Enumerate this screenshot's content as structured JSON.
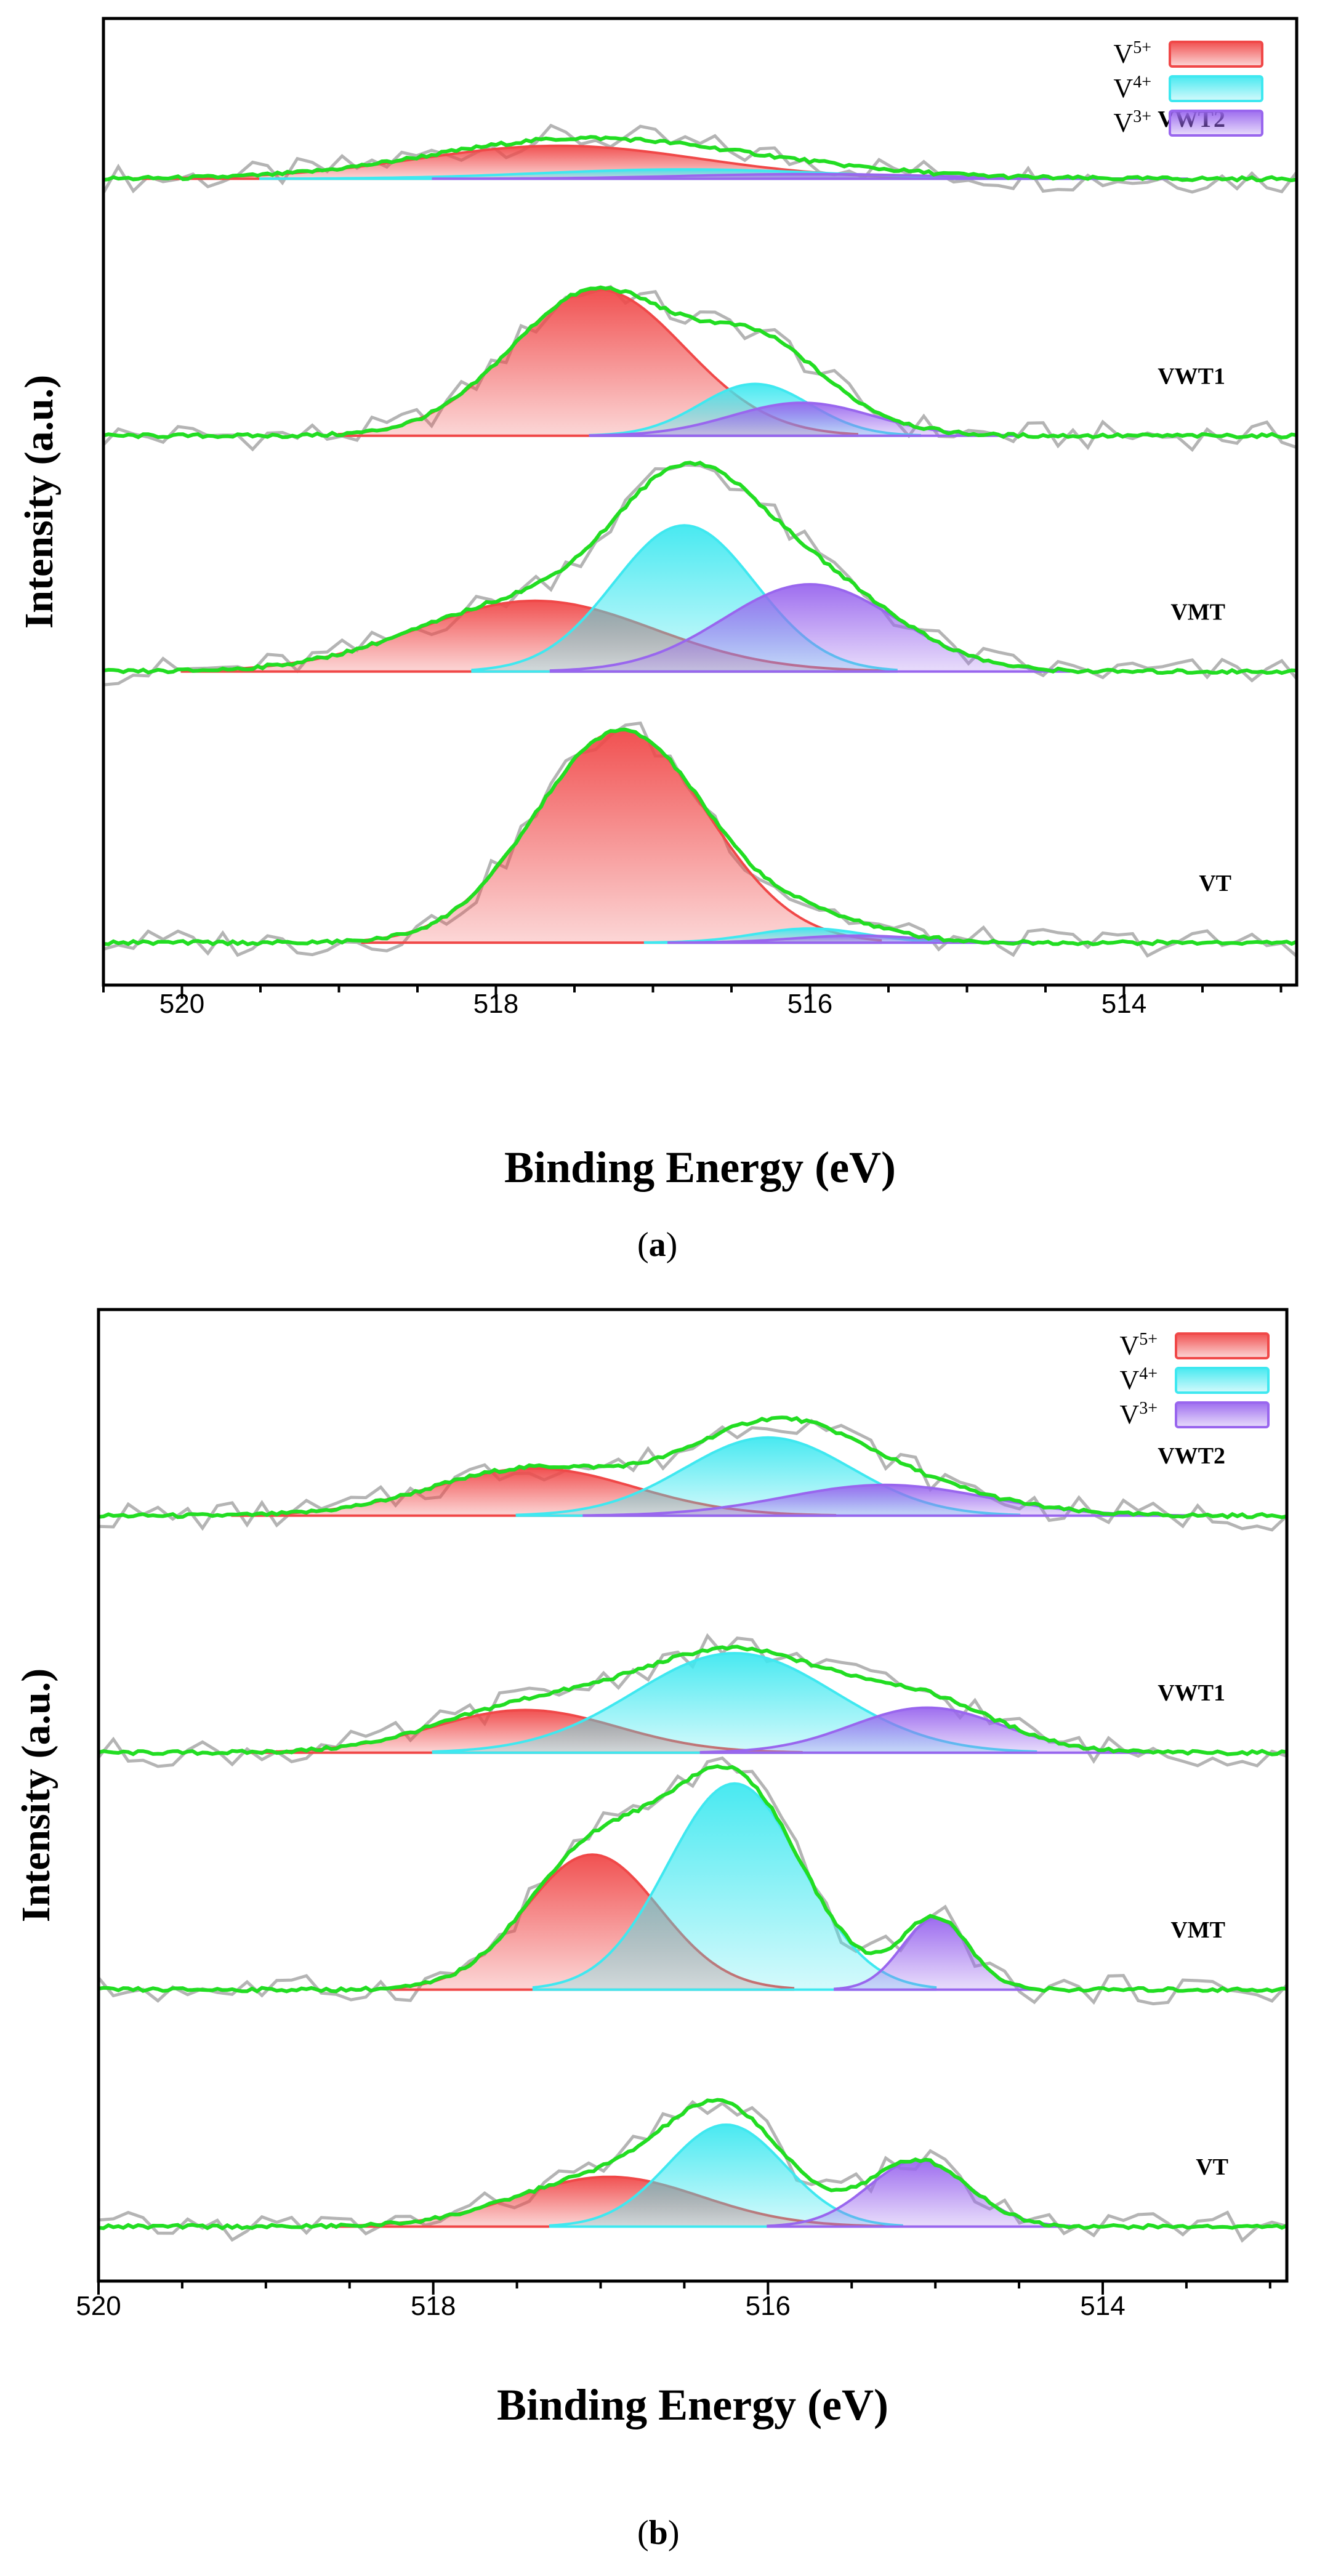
{
  "colors": {
    "v5": "#f04848",
    "v4": "#3fe8f0",
    "v3": "#9966ee",
    "envelope": "#22dd22",
    "raw": "#b4b4b4",
    "frame": "#000000"
  },
  "legend_items": [
    {
      "base": "V",
      "sup": "5+",
      "color": "#f04848"
    },
    {
      "base": "V",
      "sup": "4+",
      "color": "#3fe8f0"
    },
    {
      "base": "V",
      "sup": "3+",
      "color": "#9966ee"
    }
  ],
  "chart_data": [
    {
      "type": "line",
      "panel": "a",
      "caption_open": "(",
      "caption_letter": "a",
      "caption_close": ")",
      "title": "",
      "xlabel": "Binding Energy (eV)",
      "ylabel": "Intensity (a.u.)",
      "xlim": [
        520.5,
        512.9
      ],
      "xticks": [
        520,
        518,
        516,
        514
      ],
      "ylim": [
        0,
        4.1
      ],
      "grid": false,
      "legend_position": "top-right",
      "series": [
        {
          "name": "VWT2",
          "baseline": 3.42,
          "components": [
            {
              "state": "V5+",
              "center": 517.6,
              "amp": 0.14,
              "sigma": 0.9
            },
            {
              "state": "V4+",
              "center": 516.8,
              "amp": 0.04,
              "sigma": 0.9
            },
            {
              "state": "V3+",
              "center": 516.0,
              "amp": 0.02,
              "sigma": 0.8
            }
          ]
        },
        {
          "name": "VWT1",
          "baseline": 2.33,
          "components": [
            {
              "state": "V5+",
              "center": 517.35,
              "amp": 0.62,
              "sigma": 0.55
            },
            {
              "state": "V4+",
              "center": 516.35,
              "amp": 0.22,
              "sigma": 0.35
            },
            {
              "state": "V3+",
              "center": 516.05,
              "amp": 0.14,
              "sigma": 0.45
            }
          ]
        },
        {
          "name": "VMT",
          "baseline": 1.33,
          "components": [
            {
              "state": "V5+",
              "center": 517.75,
              "amp": 0.3,
              "sigma": 0.75
            },
            {
              "state": "V4+",
              "center": 516.8,
              "amp": 0.62,
              "sigma": 0.45
            },
            {
              "state": "V3+",
              "center": 516.0,
              "amp": 0.37,
              "sigma": 0.55
            }
          ]
        },
        {
          "name": "VT",
          "baseline": 0.18,
          "components": [
            {
              "state": "V5+",
              "center": 517.2,
              "amp": 0.9,
              "sigma": 0.55
            },
            {
              "state": "V4+",
              "center": 516.0,
              "amp": 0.06,
              "sigma": 0.35
            },
            {
              "state": "V3+",
              "center": 515.7,
              "amp": 0.03,
              "sigma": 0.4
            }
          ]
        }
      ]
    },
    {
      "type": "line",
      "panel": "b",
      "caption_open": "(",
      "caption_letter": "b",
      "caption_close": ")",
      "title": "",
      "xlabel": "Binding Energy (eV)",
      "ylabel": "Intensity (a.u.)",
      "xlim": [
        520.0,
        512.9
      ],
      "xticks": [
        520,
        518,
        516,
        514
      ],
      "ylim": [
        0,
        4.1
      ],
      "grid": false,
      "legend_position": "top-right",
      "series": [
        {
          "name": "VWT2",
          "baseline": 3.23,
          "components": [
            {
              "state": "V5+",
              "center": 517.4,
              "amp": 0.2,
              "sigma": 0.6
            },
            {
              "state": "V4+",
              "center": 516.0,
              "amp": 0.33,
              "sigma": 0.5
            },
            {
              "state": "V3+",
              "center": 515.3,
              "amp": 0.13,
              "sigma": 0.6
            }
          ]
        },
        {
          "name": "VWT1",
          "baseline": 2.23,
          "components": [
            {
              "state": "V5+",
              "center": 517.45,
              "amp": 0.18,
              "sigma": 0.55
            },
            {
              "state": "V4+",
              "center": 516.2,
              "amp": 0.42,
              "sigma": 0.6
            },
            {
              "state": "V3+",
              "center": 515.05,
              "amp": 0.19,
              "sigma": 0.45
            }
          ]
        },
        {
          "name": "VMT",
          "baseline": 1.23,
          "components": [
            {
              "state": "V5+",
              "center": 517.05,
              "amp": 0.57,
              "sigma": 0.4
            },
            {
              "state": "V4+",
              "center": 516.2,
              "amp": 0.87,
              "sigma": 0.4
            },
            {
              "state": "V3+",
              "center": 515.0,
              "amp": 0.3,
              "sigma": 0.2
            }
          ]
        },
        {
          "name": "VT",
          "baseline": 0.23,
          "components": [
            {
              "state": "V5+",
              "center": 516.95,
              "amp": 0.21,
              "sigma": 0.55
            },
            {
              "state": "V4+",
              "center": 516.25,
              "amp": 0.43,
              "sigma": 0.35
            },
            {
              "state": "V3+",
              "center": 515.1,
              "amp": 0.28,
              "sigma": 0.3
            }
          ]
        }
      ]
    }
  ]
}
